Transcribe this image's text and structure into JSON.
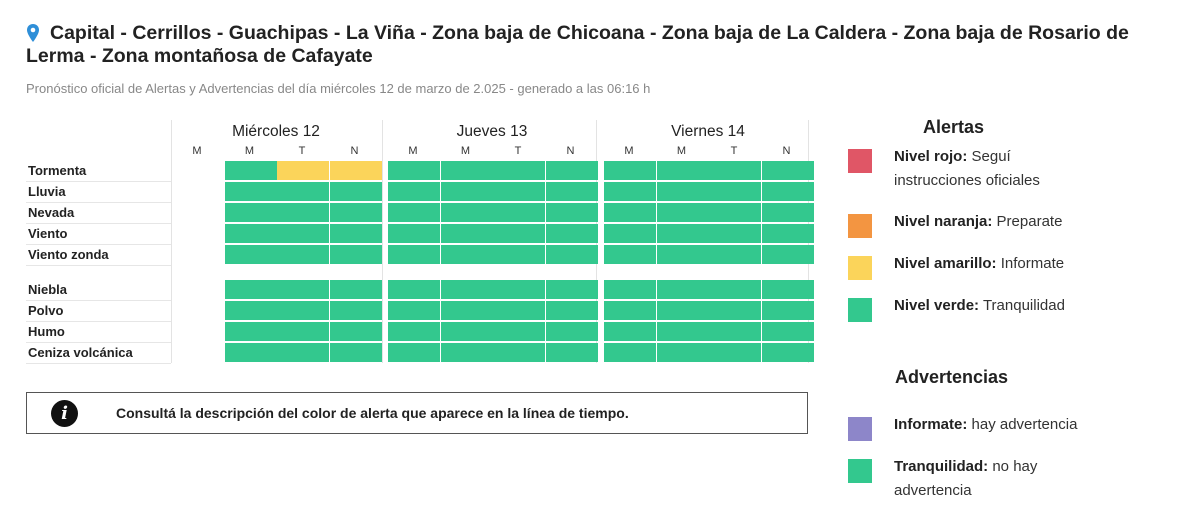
{
  "header": {
    "title": "Capital - Cerrillos - Guachipas - La Viña - Zona baja de Chicoana - Zona baja de La Caldera - Zona baja de Rosario de Lerma - Zona montañosa de Cafayate",
    "subtitle": "Pronóstico oficial de Alertas y Advertencias del día miércoles 12 de marzo de 2.025 - generado a las 06:16 h",
    "location_icon": "location-pin-icon"
  },
  "timeline": {
    "days": [
      {
        "label": "Miércoles 12",
        "slots": [
          "M",
          "M",
          "T",
          "N"
        ]
      },
      {
        "label": "Jueves 13",
        "slots": [
          "M",
          "M",
          "T",
          "N"
        ]
      },
      {
        "label": "Viernes 14",
        "slots": [
          "M",
          "M",
          "T",
          "N"
        ]
      }
    ],
    "rows": [
      {
        "label": "Tormenta",
        "levels": [
          "none",
          "green",
          "yellow",
          "yellow",
          "green",
          "green",
          "green",
          "green",
          "green",
          "green",
          "green",
          "green"
        ]
      },
      {
        "label": "Lluvia",
        "levels": [
          "none",
          "green",
          "green",
          "green",
          "green",
          "green",
          "green",
          "green",
          "green",
          "green",
          "green",
          "green"
        ]
      },
      {
        "label": "Nevada",
        "levels": [
          "none",
          "green",
          "green",
          "green",
          "green",
          "green",
          "green",
          "green",
          "green",
          "green",
          "green",
          "green"
        ]
      },
      {
        "label": "Viento",
        "levels": [
          "none",
          "green",
          "green",
          "green",
          "green",
          "green",
          "green",
          "green",
          "green",
          "green",
          "green",
          "green"
        ]
      },
      {
        "label": "Viento zonda",
        "levels": [
          "none",
          "green",
          "green",
          "green",
          "green",
          "green",
          "green",
          "green",
          "green",
          "green",
          "green",
          "green"
        ]
      },
      {
        "label": "Niebla",
        "levels": [
          "none",
          "green",
          "green",
          "green",
          "green",
          "green",
          "green",
          "green",
          "green",
          "green",
          "green",
          "green"
        ]
      },
      {
        "label": "Polvo",
        "levels": [
          "none",
          "green",
          "green",
          "green",
          "green",
          "green",
          "green",
          "green",
          "green",
          "green",
          "green",
          "green"
        ]
      },
      {
        "label": "Humo",
        "levels": [
          "none",
          "green",
          "green",
          "green",
          "green",
          "green",
          "green",
          "green",
          "green",
          "green",
          "green",
          "green"
        ]
      },
      {
        "label": "Ceniza volcánica",
        "levels": [
          "none",
          "green",
          "green",
          "green",
          "green",
          "green",
          "green",
          "green",
          "green",
          "green",
          "green",
          "green"
        ]
      }
    ]
  },
  "info": {
    "icon": "info-icon",
    "text": "Consultá la descripción del color de alerta que aparece en la línea de tiempo."
  },
  "colors": {
    "red": "#e05666",
    "orange": "#f39541",
    "yellow": "#fbd45a",
    "green": "#33c88e",
    "purple": "#8d86c9"
  },
  "legend": {
    "alertas_title": "Alertas",
    "alertas": [
      {
        "name": "Nivel rojo:",
        "desc": "Seguí instrucciones oficiales",
        "color": "red"
      },
      {
        "name": "Nivel naranja:",
        "desc": "Preparate",
        "color": "orange"
      },
      {
        "name": "Nivel amarillo:",
        "desc": "Informate",
        "color": "yellow"
      },
      {
        "name": "Nivel verde:",
        "desc": "Tranquilidad",
        "color": "green"
      }
    ],
    "advertencias_title": "Advertencias",
    "advertencias": [
      {
        "name": "Informate:",
        "desc": "hay advertencia",
        "color": "purple"
      },
      {
        "name": "Tranquilidad:",
        "desc": "no hay advertencia",
        "color": "green"
      }
    ]
  }
}
